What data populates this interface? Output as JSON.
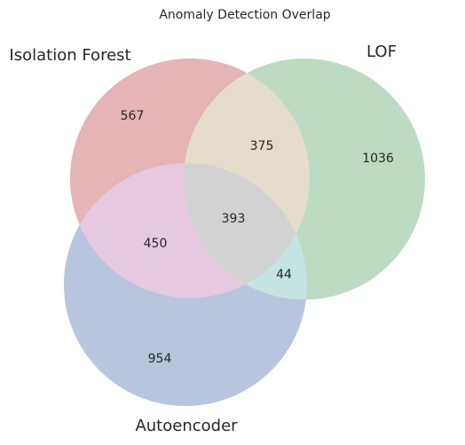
{
  "chart_data": {
    "type": "venn",
    "title": "Anomaly Detection Overlap",
    "sets": [
      {
        "name": "Isolation Forest",
        "color": "#e4b4b6"
      },
      {
        "name": "LOF",
        "color": "#bcdbc2"
      },
      {
        "name": "Autoencoder",
        "color": "#b8c5de"
      }
    ],
    "regions": [
      {
        "sets": [
          "Isolation Forest"
        ],
        "value": "567"
      },
      {
        "sets": [
          "LOF"
        ],
        "value": "1036"
      },
      {
        "sets": [
          "Autoencoder"
        ],
        "value": "954"
      },
      {
        "sets": [
          "Isolation Forest",
          "LOF"
        ],
        "value": "375"
      },
      {
        "sets": [
          "Isolation Forest",
          "Autoencoder"
        ],
        "value": "450"
      },
      {
        "sets": [
          "LOF",
          "Autoencoder"
        ],
        "value": "44"
      },
      {
        "sets": [
          "Isolation Forest",
          "LOF",
          "Autoencoder"
        ],
        "value": "393"
      }
    ],
    "overlap_colors": {
      "isolation_forest_lof": "#e6dccb",
      "isolation_forest_autoencoder": "#e6c9df",
      "lof_autoencoder": "#c3e4e0",
      "all_three": "#d2d2d2"
    }
  }
}
